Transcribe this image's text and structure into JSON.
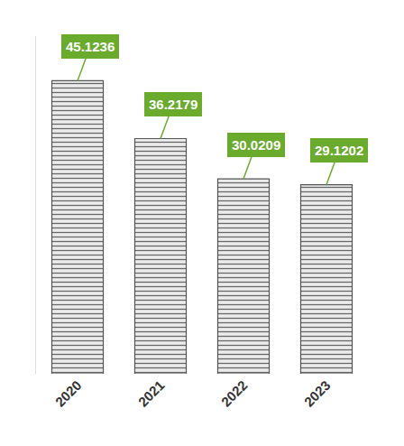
{
  "chart_data": {
    "type": "bar",
    "categories": [
      "2020",
      "2021",
      "2022",
      "2023"
    ],
    "values": [
      45.1236,
      36.2179,
      30.0209,
      29.1202
    ],
    "color": "#ebebeb",
    "ylim": [
      0,
      52
    ],
    "tick_labels": "x",
    "data_labels": true,
    "grid": false
  }
}
